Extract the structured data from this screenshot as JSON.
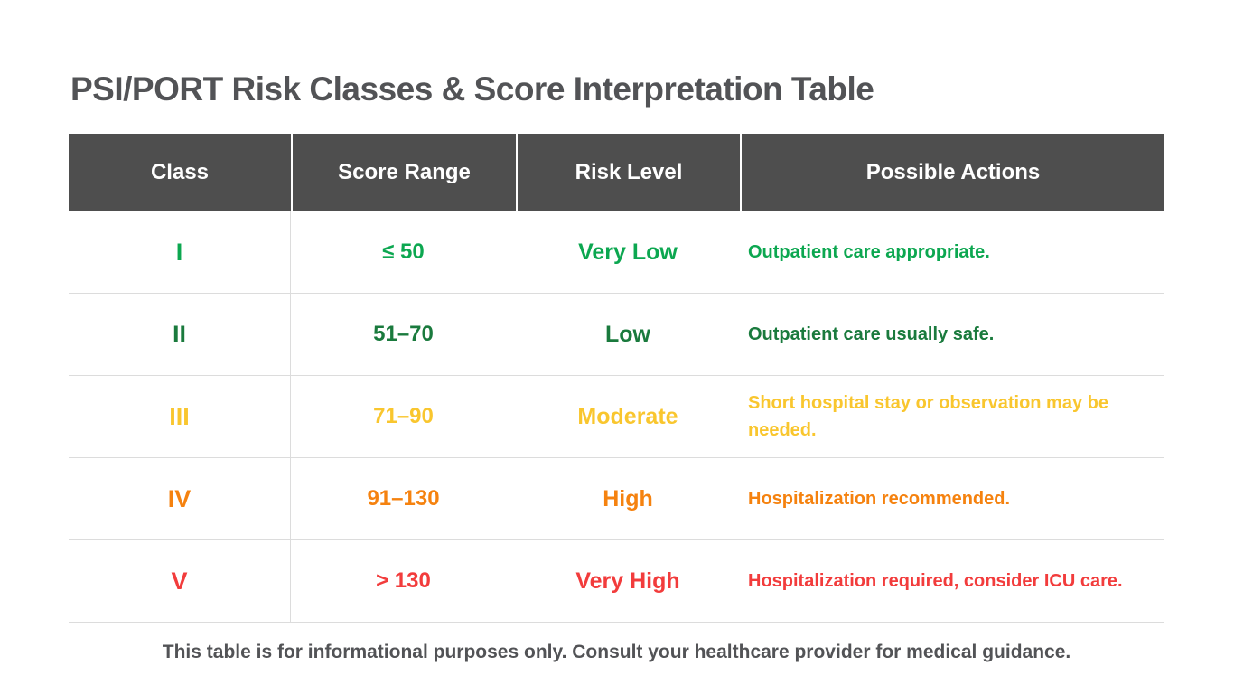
{
  "title": "PSI/PORT Risk Classes & Score Interpretation Table",
  "colors": {
    "header_bg": "#4E4E4E",
    "header_text": "#FFFFFF",
    "title_text": "#525356",
    "divider": "#DCDCDC"
  },
  "table": {
    "headers": [
      "Class",
      "Score Range",
      "Risk Level",
      "Possible Actions"
    ],
    "rows": [
      {
        "class": "I",
        "score_range": "≤ 50",
        "risk_level": "Very Low",
        "actions": "Outpatient care appropriate.",
        "color": "#0CA750"
      },
      {
        "class": "II",
        "score_range": "51–70",
        "risk_level": "Low",
        "actions": "Outpatient care usually safe.",
        "color": "#1A7A3D"
      },
      {
        "class": "III",
        "score_range": "71–90",
        "risk_level": "Moderate",
        "actions": "Short hospital stay or observation may be needed.",
        "color": "#F9C62E"
      },
      {
        "class": "IV",
        "score_range": "91–130",
        "risk_level": "High",
        "actions": "Hospitalization recommended.",
        "color": "#F5820F"
      },
      {
        "class": "V",
        "score_range": "> 130",
        "risk_level": "Very High",
        "actions": "Hospitalization required, consider ICU care.",
        "color": "#F23C3C"
      }
    ]
  },
  "footer": "This table is for informational purposes only. Consult your healthcare provider for medical guidance."
}
